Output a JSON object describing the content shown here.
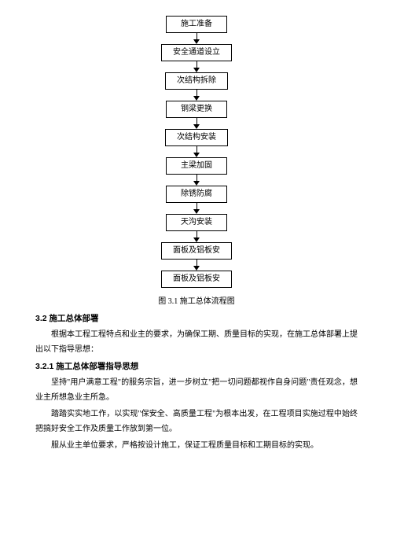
{
  "flowchart": {
    "nodes": [
      "施工准备",
      "安全通道设立",
      "次结构拆除",
      "钢梁更换",
      "次结构安装",
      "主梁加固",
      "除锈防腐",
      "天沟安装",
      "面板及铝板安",
      "面板及铝板安"
    ],
    "box_border_color": "#000000",
    "box_bg_color": "#ffffff",
    "arrow_color": "#000000"
  },
  "figure_caption": "图 3.1 施工总体流程图",
  "sections": {
    "s32": {
      "heading": "3.2 施工总体部署",
      "para1": "根据本工程工程特点和业主的要求，为确保工期、质量目标的实现，在施工总体部署上提出以下指导思想："
    },
    "s321": {
      "heading": "3.2.1 施工总体部署指导思想",
      "para1": "坚持\"用户满意工程\"的服务宗旨，进一步树立\"把一切问题都视作自身问题\"责任观念，想业主所想急业主所急。",
      "para2": "踏踏实实地工作，以实现\"保安全、高质量工程\"为根本出发，在工程项目实施过程中始终把搞好安全工作及质量工作放到第一位。",
      "para3": "服从业主单位要求，严格按设计施工，保证工程质量目标和工期目标的实现。"
    }
  }
}
